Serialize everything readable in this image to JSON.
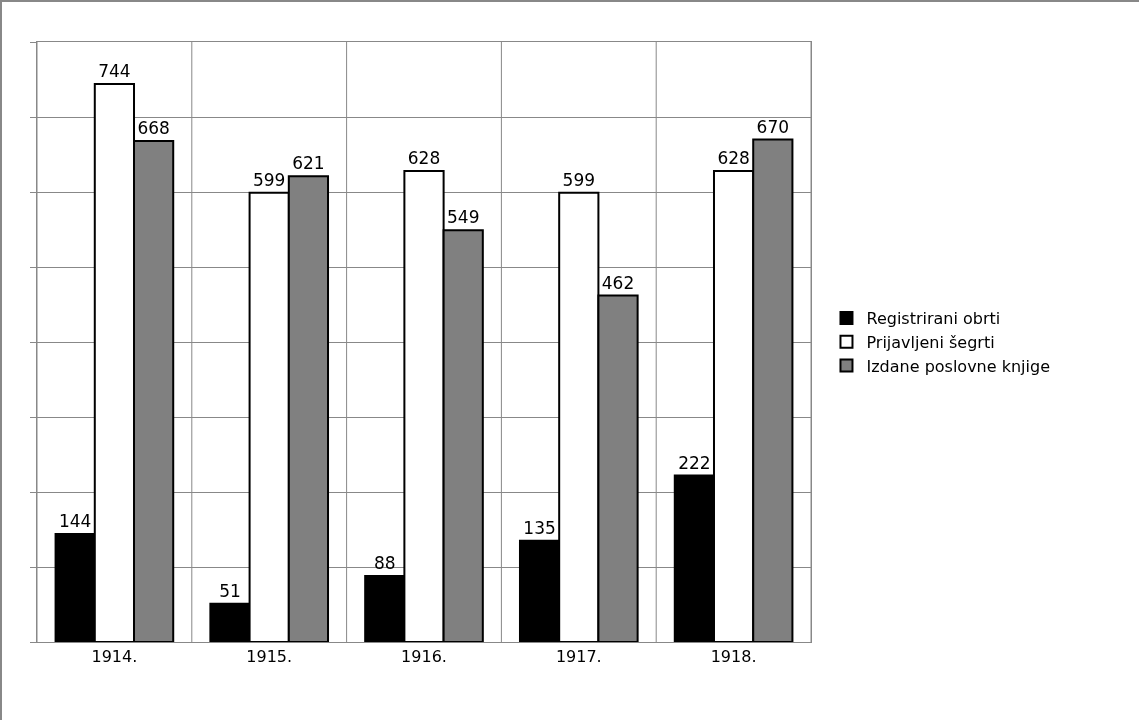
{
  "chart_data": {
    "type": "bar",
    "categories": [
      "1914.",
      "1915.",
      "1916.",
      "1917.",
      "1918."
    ],
    "series": [
      {
        "name": "Registrirani obrti",
        "color": "#000000",
        "values": [
          144,
          51,
          88,
          135,
          222
        ]
      },
      {
        "name": "Prijavljeni šegrti",
        "color": "#ffffff",
        "values": [
          744,
          599,
          628,
          599,
          628
        ]
      },
      {
        "name": "Izdane poslovne knjige",
        "color": "#808080",
        "values": [
          668,
          621,
          549,
          462,
          670
        ]
      }
    ],
    "ylim": [
      0,
      800
    ],
    "yticks": [
      {
        "value": 0,
        "label": null
      },
      {
        "value": 100,
        "label": null
      },
      {
        "value": 200,
        "label": null
      },
      {
        "value": 300,
        "label": null
      },
      {
        "value": 400,
        "label": null
      },
      {
        "value": 500,
        "label": null
      },
      {
        "value": 600,
        "label": null
      },
      {
        "value": 700,
        "label": null
      },
      {
        "value": 800,
        "label": null
      }
    ],
    "grid": true,
    "legend": "right",
    "data_labels": true
  }
}
